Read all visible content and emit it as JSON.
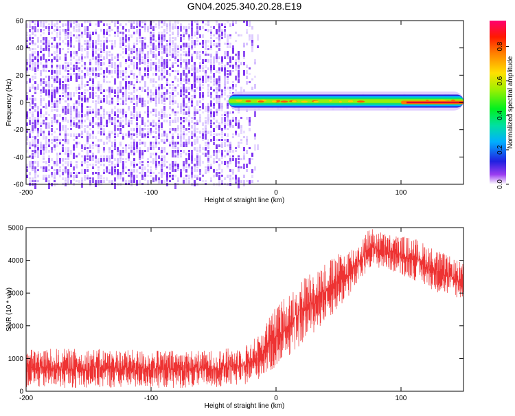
{
  "title": "GN04.2025.340.20.28.E19",
  "colors": {
    "snr_line": "#ee3333",
    "noise": "#7a2ef0",
    "noise_light": "#c7a8ff",
    "frame": "#000000"
  },
  "chart_data": [
    {
      "type": "heatmap",
      "title": "GN04.2025.340.20.28.E19",
      "xlabel": "Height of straight line (km)",
      "ylabel": "Frequency (Hz)",
      "xlim": [
        -200,
        150
      ],
      "ylim": [
        -60,
        60
      ],
      "xticks": [
        -200,
        -100,
        0,
        100
      ],
      "yticks": [
        -60,
        -40,
        -20,
        0,
        20,
        40,
        60
      ],
      "colorbar": {
        "label": "Normalized spectral amplitude",
        "range": [
          0,
          0.95
        ],
        "ticks": [
          0,
          0.2,
          0.4,
          0.6,
          0.8
        ]
      },
      "features": [
        {
          "name": "broadband noise",
          "x_range": [
            -200,
            -30
          ],
          "y_range": [
            -60,
            60
          ],
          "amplitude": 0.15
        },
        {
          "name": "signal band",
          "x_range": [
            -38,
            150
          ],
          "y_center": 1,
          "half_width_hz": 3,
          "amplitude": 0.6
        },
        {
          "name": "strong signal core",
          "x_range": [
            100,
            150
          ],
          "y_center": 0,
          "amplitude": 0.9
        }
      ]
    },
    {
      "type": "line",
      "title": "",
      "xlabel": "Height of straight line (km)",
      "ylabel": "SNR (10 * v/v)",
      "xlim": [
        -200,
        150
      ],
      "ylim": [
        0,
        5000
      ],
      "xticks": [
        -200,
        -100,
        0,
        100
      ],
      "yticks": [
        0,
        1000,
        2000,
        3000,
        4000,
        5000
      ],
      "series": [
        {
          "name": "SNR",
          "envelope_x": [
            -200,
            -150,
            -100,
            -50,
            -25,
            -15,
            0,
            25,
            50,
            65,
            75,
            90,
            110,
            130,
            150
          ],
          "envelope_low": [
            100,
            100,
            100,
            100,
            200,
            350,
            700,
            1600,
            2500,
            3200,
            3800,
            3700,
            3400,
            3000,
            2800
          ],
          "envelope_high": [
            1300,
            1300,
            1250,
            1250,
            1400,
            1700,
            2600,
            3600,
            4200,
            4500,
            5000,
            4800,
            4700,
            4300,
            3900
          ]
        }
      ]
    }
  ]
}
